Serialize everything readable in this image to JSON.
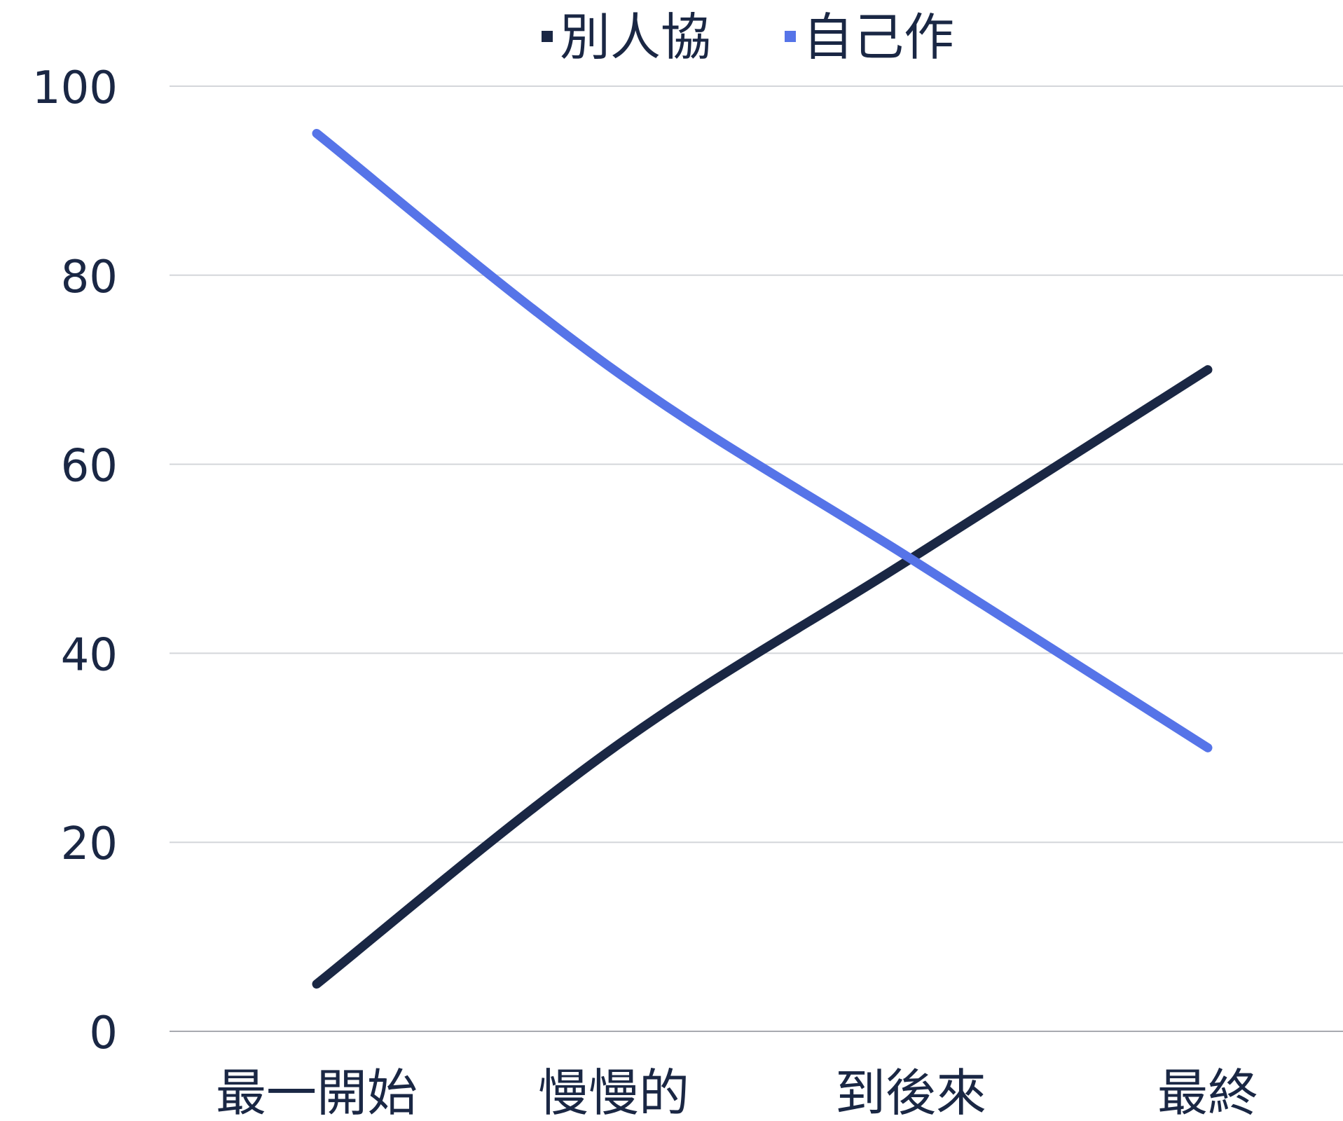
{
  "chart_data": {
    "type": "line",
    "title": "",
    "xlabel": "",
    "ylabel": "",
    "categories": [
      "最一開始",
      "慢慢的",
      "到後來",
      "最終"
    ],
    "series": [
      {
        "name": "別人協",
        "values": [
          5,
          30,
          50,
          70
        ],
        "color": "#1a2744"
      },
      {
        "name": "自己作",
        "values": [
          95,
          70,
          50,
          30
        ],
        "color": "#5674e8"
      }
    ],
    "ylim": [
      0,
      100
    ],
    "yticks": [
      "0",
      "20",
      "40",
      "60",
      "80",
      "100"
    ],
    "grid": true,
    "legend_position": "top-center",
    "smooth": true
  }
}
